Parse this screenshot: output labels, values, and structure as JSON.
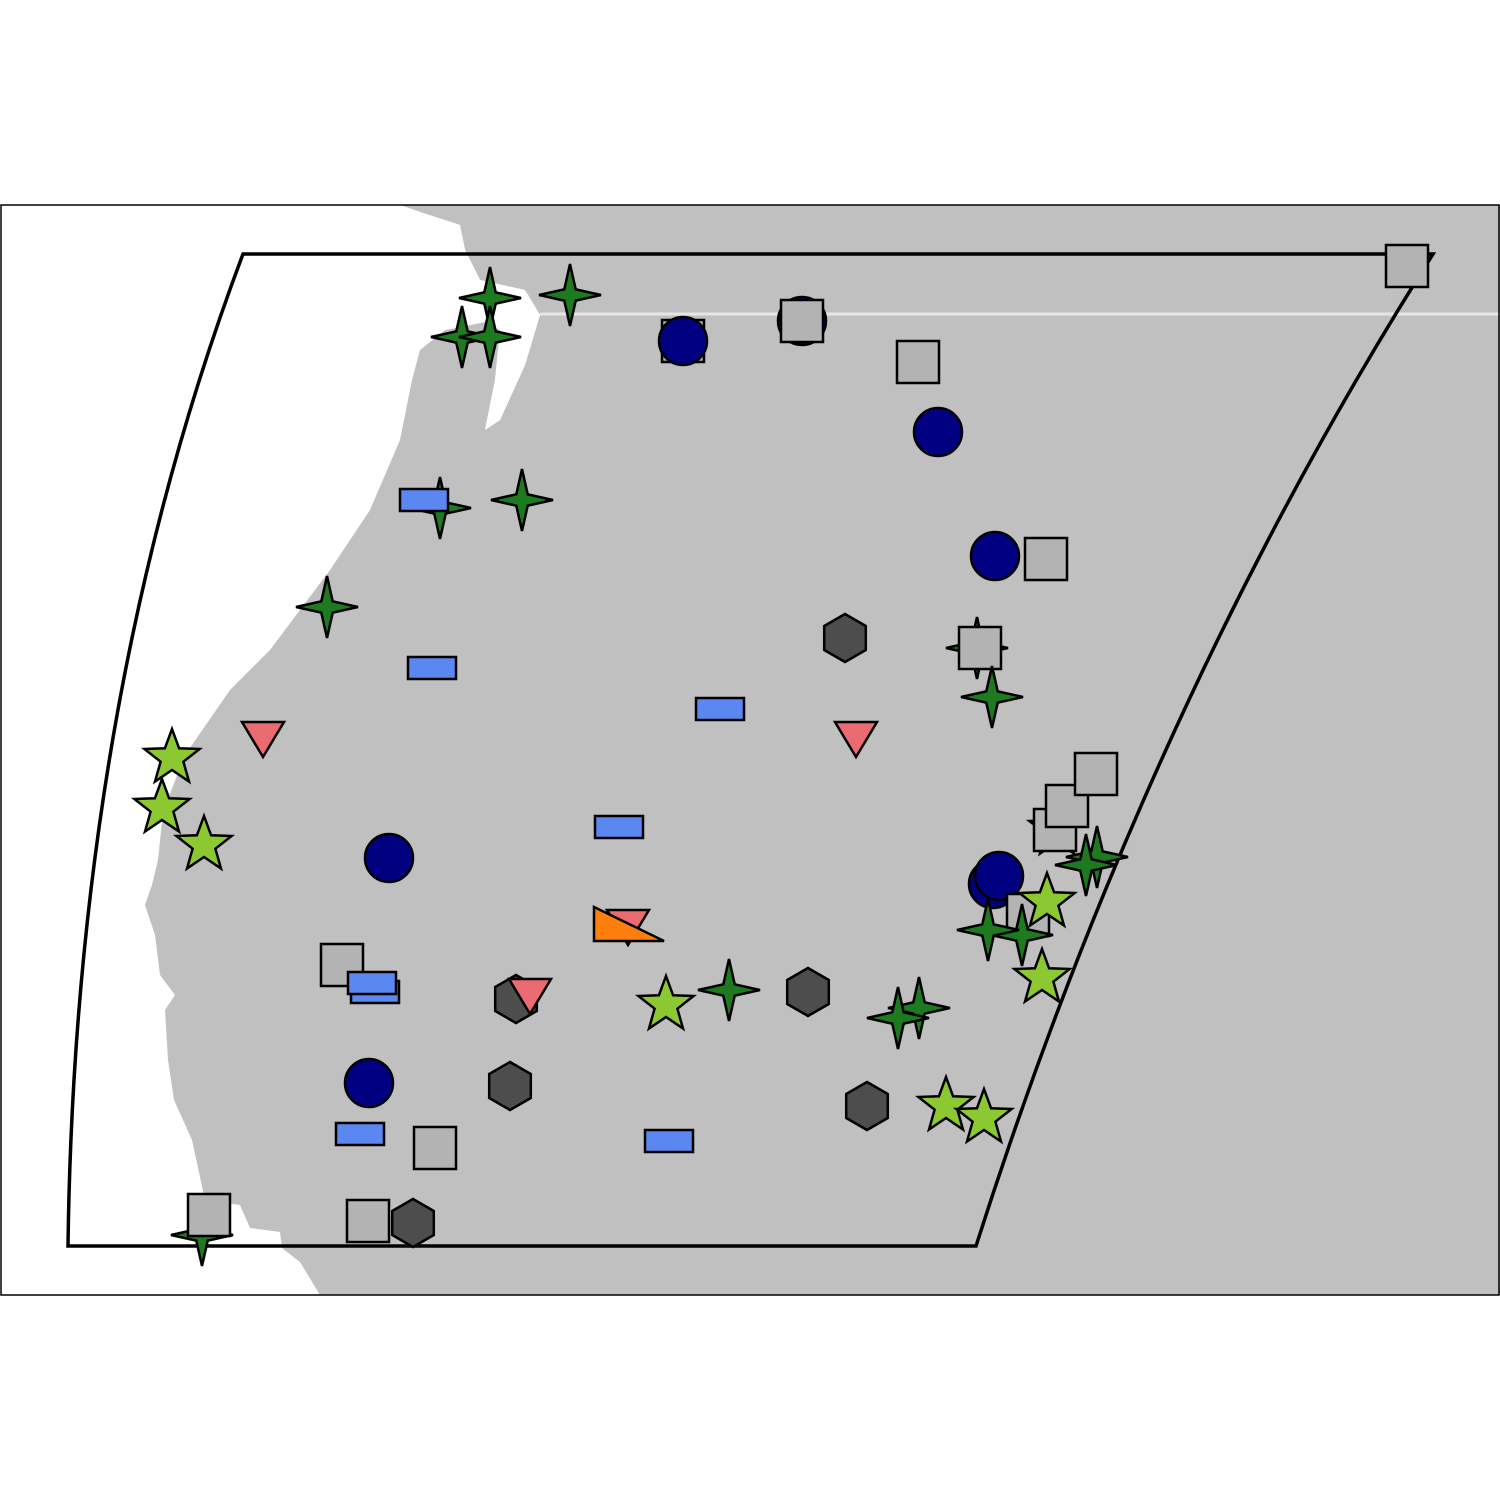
{
  "map": {
    "colors": {
      "background": "#ffffff",
      "land": "#c0c0c0",
      "water": "#ffffff",
      "border": "#e6e6e6",
      "outline": "#000000"
    },
    "marker_styles": {
      "circle": {
        "fill": "#000080",
        "shape": "circle"
      },
      "square": {
        "fill": "#b3b3b3",
        "shape": "square"
      },
      "star4": {
        "fill": "#1e7a1e",
        "shape": "four-point-star"
      },
      "star5": {
        "fill": "#8cc832",
        "shape": "five-point-star"
      },
      "hexagon": {
        "fill": "#4d4d4d",
        "shape": "hexagon"
      },
      "rect": {
        "fill": "#5b87f0",
        "shape": "rectangle"
      },
      "triangle": {
        "fill": "#eb6b73",
        "shape": "down-triangle"
      },
      "wedge": {
        "fill": "#ff7f0e",
        "shape": "right-triangle"
      }
    }
  }
}
